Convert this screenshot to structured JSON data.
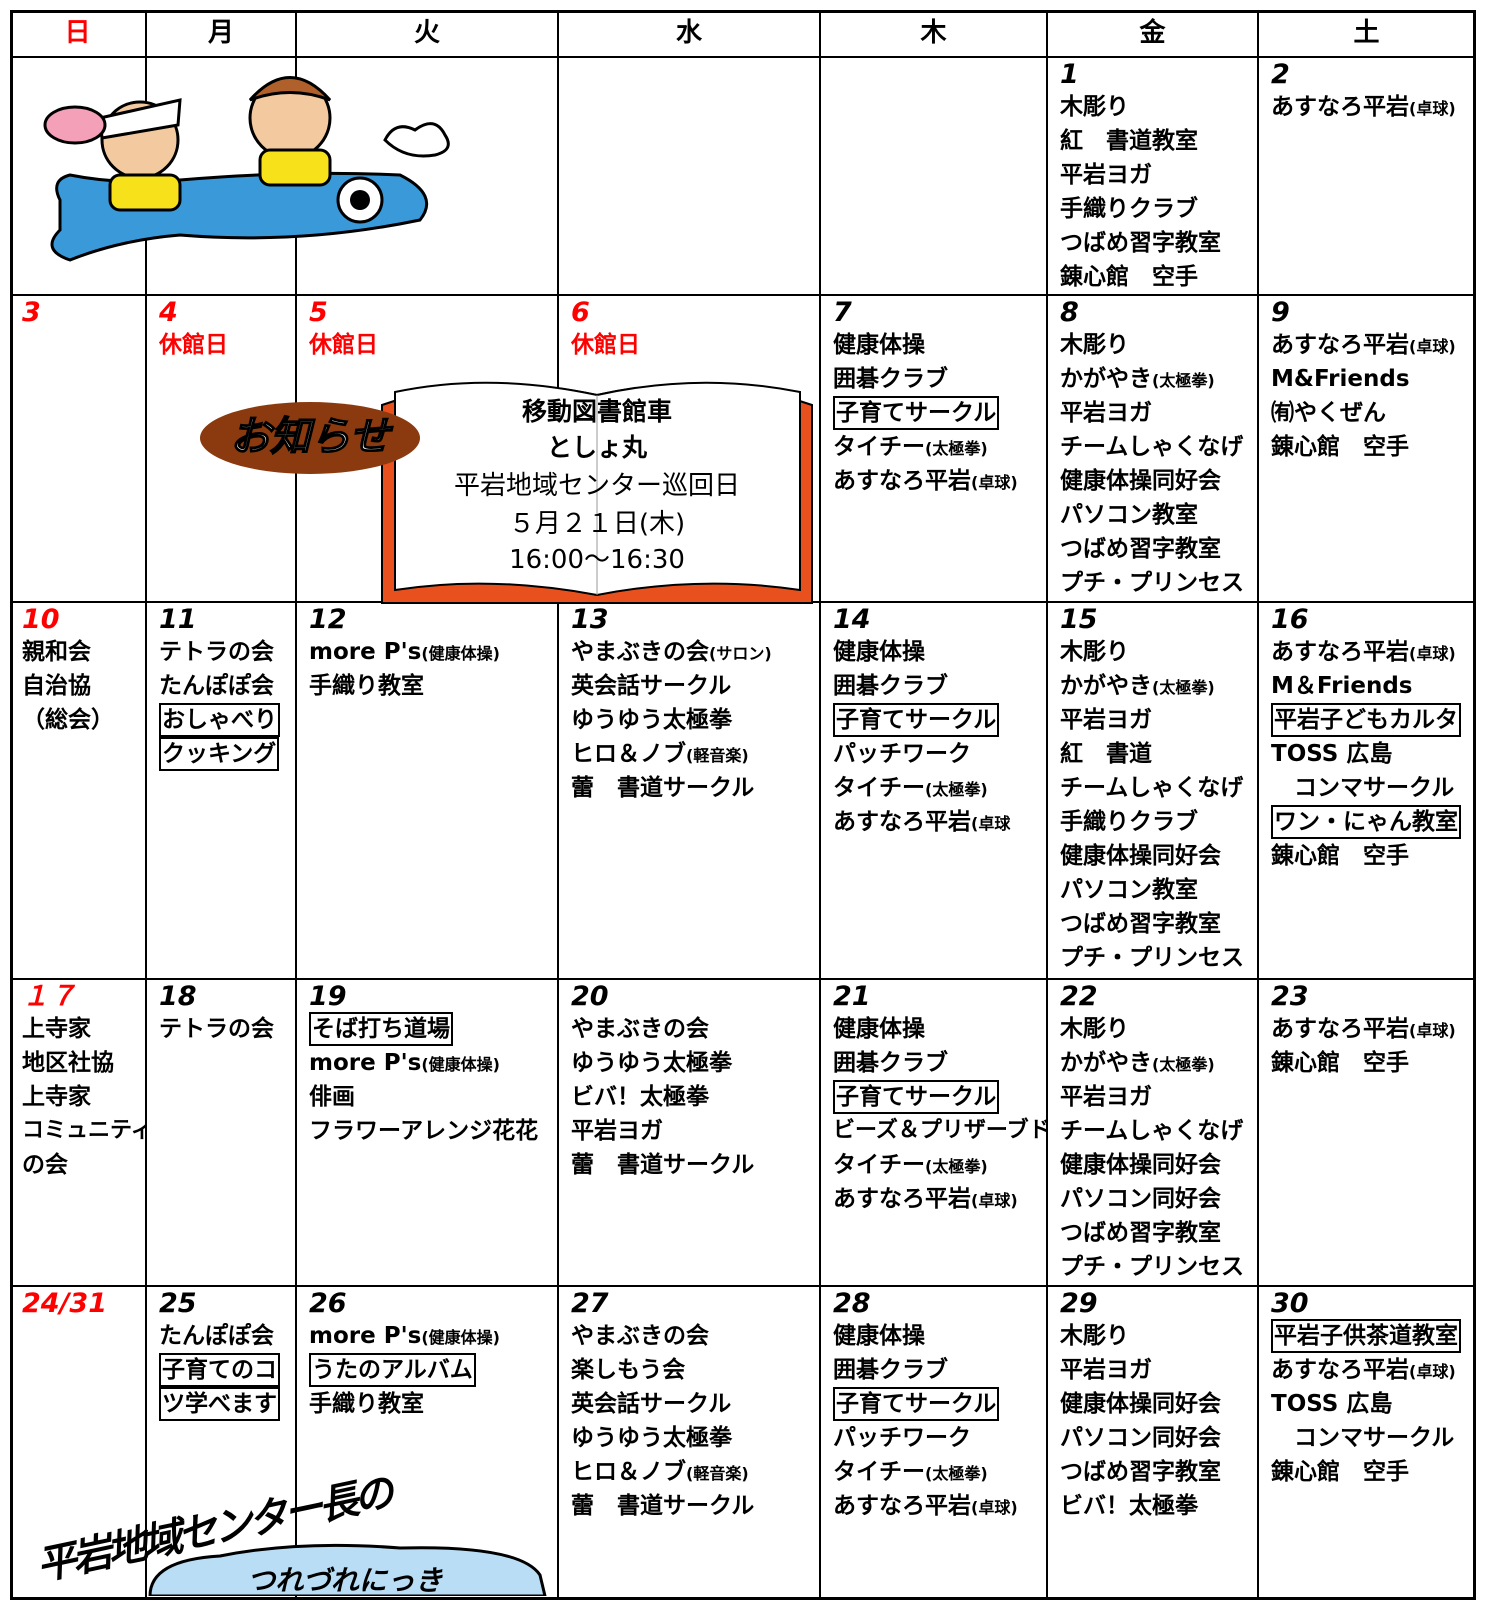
{
  "header": [
    {
      "text": "日",
      "color": "#ff0000"
    },
    {
      "text": "月"
    },
    {
      "text": "火"
    },
    {
      "text": "水"
    },
    {
      "text": "木"
    },
    {
      "text": "金"
    },
    {
      "text": "土"
    }
  ],
  "weeks": [
    [
      null,
      null,
      null,
      null,
      null,
      {
        "day": "1",
        "items": [
          "木彫り",
          "紅　書道教室",
          "平岩ヨガ",
          "手織りクラブ",
          "つばめ習字教室",
          "錬心館　空手"
        ]
      },
      {
        "day": "2",
        "items": [
          "あすなろ平岩(卓球)"
        ]
      }
    ],
    [
      {
        "day": "3",
        "color": "#ff0000",
        "items": []
      },
      {
        "day": "4",
        "color": "#ff0000",
        "items": [
          {
            "text": "休館日",
            "color": "#ff0000"
          }
        ]
      },
      {
        "day": "5",
        "color": "#ff0000",
        "items": [
          {
            "text": "休館日",
            "color": "#ff0000"
          }
        ]
      },
      {
        "day": "6",
        "color": "#ff0000",
        "items": [
          {
            "text": "休館日",
            "color": "#ff0000"
          }
        ]
      },
      {
        "day": "7",
        "items": [
          "健康体操",
          "囲碁クラブ",
          {
            "text": "子育てサークル",
            "boxed": true
          },
          "タイチー(太極拳)",
          "あすなろ平岩(卓球)"
        ]
      },
      {
        "day": "8",
        "items": [
          "木彫り",
          "かがやき(太極拳)",
          "平岩ヨガ",
          "チームしゃくなげ",
          "健康体操同好会",
          "パソコン教室",
          "つばめ習字教室",
          "プチ・プリンセス"
        ]
      },
      {
        "day": "9",
        "items": [
          "あすなろ平岩(卓球)",
          "M&Friends",
          "㈲やくぜん",
          "錬心館　空手"
        ]
      }
    ],
    [
      {
        "day": "10",
        "color": "#ff0000",
        "items": [
          "親和会",
          "自治協",
          "（総会）"
        ]
      },
      {
        "day": "11",
        "items": [
          "テトラの会",
          "たんぽぽ会",
          {
            "text": "おしゃべり",
            "boxed": true
          },
          {
            "text": "クッキング",
            "boxed": true
          }
        ]
      },
      {
        "day": "12",
        "items": [
          "more P's(健康体操)",
          "手織り教室"
        ]
      },
      {
        "day": "13",
        "items": [
          "やまぶきの会(サロン)",
          "英会話サークル",
          "ゆうゆう太極拳",
          "ヒロ＆ノブ(軽音楽)",
          "蕾　書道サークル"
        ]
      },
      {
        "day": "14",
        "items": [
          "健康体操",
          "囲碁クラブ",
          {
            "text": "子育てサークル",
            "boxed": true
          },
          "パッチワーク",
          "タイチー(太極拳)",
          "あすなろ平岩(卓球"
        ]
      },
      {
        "day": "15",
        "items": [
          "木彫り",
          "かがやき(太極拳)",
          "平岩ヨガ",
          "紅　書道",
          "チームしゃくなげ",
          "手織りクラブ",
          "健康体操同好会",
          "パソコン教室",
          "つばめ習字教室",
          "プチ・プリンセス"
        ]
      },
      {
        "day": "16",
        "items": [
          "あすなろ平岩(卓球)",
          "M＆Friends",
          {
            "text": "平岩子どもカルタ",
            "boxed": true
          },
          "TOSS 広島",
          "　コンマサークル",
          {
            "text": "ワン・にゃん教室",
            "boxed": true
          },
          "錬心館　空手"
        ]
      }
    ],
    [
      {
        "day": "１７",
        "color": "#ff0000",
        "items": [
          "上寺家",
          "地区社協",
          "上寺家",
          "コミュニティ",
          "の会"
        ]
      },
      {
        "day": "18",
        "items": [
          "テトラの会"
        ]
      },
      {
        "day": "19",
        "items": [
          {
            "text": "そば打ち道場",
            "boxed": true
          },
          "more P's(健康体操)",
          "俳画",
          "フラワーアレンジ花花"
        ]
      },
      {
        "day": "20",
        "items": [
          "やまぶきの会",
          "ゆうゆう太極拳",
          "ビバ！太極拳",
          "平岩ヨガ",
          "蕾　書道サークル"
        ]
      },
      {
        "day": "21",
        "items": [
          "健康体操",
          "囲碁クラブ",
          {
            "text": "子育てサークル",
            "boxed": true
          },
          "ビーズ＆プリザーブド",
          "タイチー(太極拳)",
          "あすなろ平岩(卓球)"
        ]
      },
      {
        "day": "22",
        "items": [
          "木彫り",
          "かがやき(太極拳)",
          "平岩ヨガ",
          "チームしゃくなげ",
          "健康体操同好会",
          "パソコン同好会",
          "つばめ習字教室",
          "プチ・プリンセス"
        ]
      },
      {
        "day": "23",
        "items": [
          "あすなろ平岩(卓球)",
          "錬心館　空手"
        ]
      }
    ],
    [
      {
        "day": "24/31",
        "color": "#ff0000",
        "items": []
      },
      {
        "day": "25",
        "items": [
          "たんぽぽ会",
          {
            "text": "子育てのコ",
            "boxed": true
          },
          {
            "text": "ツ学べます",
            "boxed": true
          }
        ]
      },
      {
        "day": "26",
        "items": [
          "more P's(健康体操)",
          {
            "text": "うたのアルバム",
            "boxed": true
          },
          "手織り教室"
        ]
      },
      {
        "day": "27",
        "items": [
          "やまぶきの会",
          "楽しもう会",
          "英会話サークル",
          "ゆうゆう太極拳",
          "ヒロ＆ノブ(軽音楽)",
          "蕾　書道サークル"
        ]
      },
      {
        "day": "28",
        "items": [
          "健康体操",
          "囲碁クラブ",
          {
            "text": "子育てサークル",
            "boxed": true
          },
          "パッチワーク",
          "タイチー(太極拳)",
          "あすなろ平岩(卓球)"
        ]
      },
      {
        "day": "29",
        "items": [
          "木彫り",
          "平岩ヨガ",
          "健康体操同好会",
          "パソコン同好会",
          "つばめ習字教室",
          "ビバ！太極拳"
        ]
      },
      {
        "day": "30",
        "items": [
          {
            "text": "平岩子供茶道教室",
            "boxed": true
          },
          "あすなろ平岩(卓球)",
          "TOSS 広島",
          "　コンマサークル",
          "錬心館　空手"
        ]
      }
    ]
  ],
  "notice": {
    "label": "お知らせ",
    "lines": [
      "移動図書館車",
      "としょ丸",
      "平岩地域センター巡回日",
      "５月２１日(木)",
      "16:00～16:30"
    ]
  },
  "diary": {
    "title": "平岩地域センター長の",
    "subtitle": "つれづれにっき"
  }
}
